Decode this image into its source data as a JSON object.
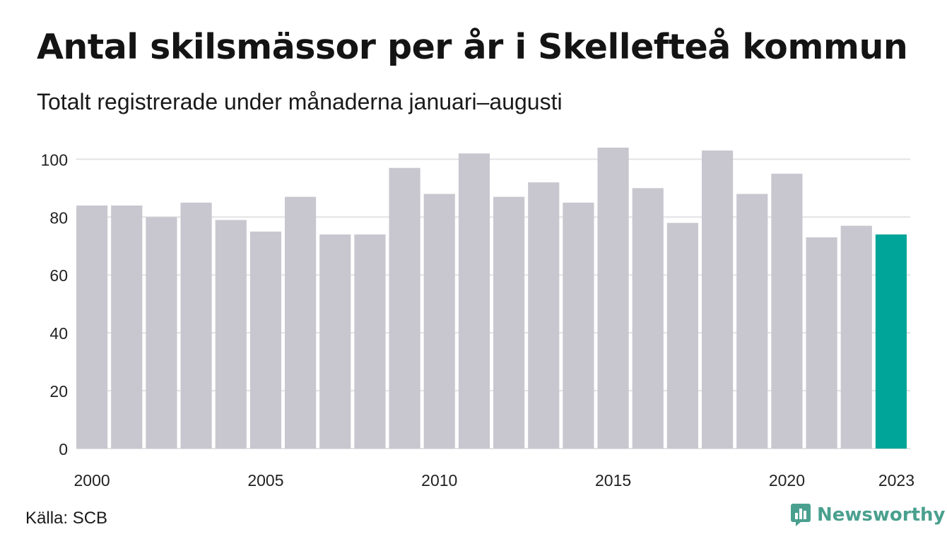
{
  "title": "Antal skilsmässor per år i Skellefteå kommun",
  "subtitle": "Totalt registrerade under månaderna januari–augusti",
  "source": "Källa: SCB",
  "brand": "Newsworthy",
  "colors": {
    "bar": "#c8c7cf",
    "highlight": "#00a59a",
    "grid": "#e3e3e6",
    "brand": "#4aa08f"
  },
  "chart_data": {
    "type": "bar",
    "categories": [
      "2000",
      "2001",
      "2002",
      "2003",
      "2004",
      "2005",
      "2006",
      "2007",
      "2008",
      "2009",
      "2010",
      "2011",
      "2012",
      "2013",
      "2014",
      "2015",
      "2016",
      "2017",
      "2018",
      "2019",
      "2020",
      "2021",
      "2022",
      "2023"
    ],
    "values": [
      84,
      84,
      80,
      85,
      79,
      75,
      87,
      74,
      74,
      97,
      88,
      102,
      87,
      92,
      85,
      104,
      90,
      78,
      103,
      88,
      95,
      73,
      77,
      74
    ],
    "highlight_category": "2023",
    "ylim": [
      0,
      104
    ],
    "yticks": [
      0,
      20,
      40,
      60,
      80,
      100
    ],
    "xtick_labels": [
      "2000",
      "2005",
      "2010",
      "2015",
      "2020",
      "2023"
    ],
    "grid": true
  }
}
